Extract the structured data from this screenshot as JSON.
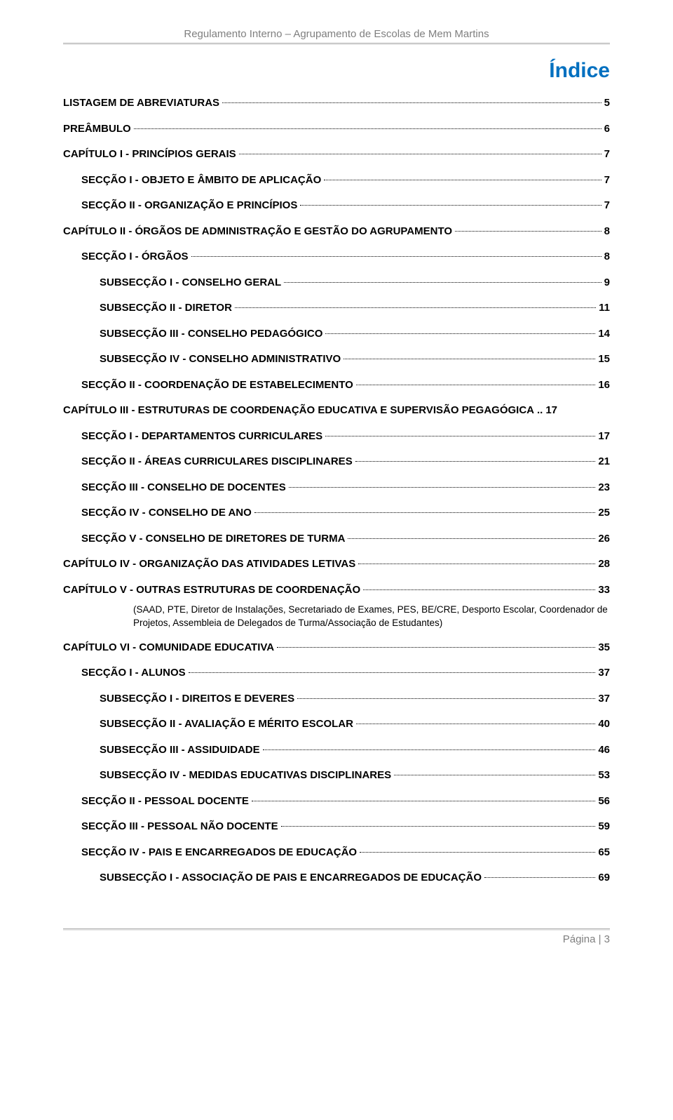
{
  "header": "Regulamento Interno – Agrupamento de Escolas de Mem Martins",
  "title": "Índice",
  "footer": "Página | 3",
  "entries": [
    {
      "label": "LISTAGEM DE ABREVIATURAS",
      "page": "5",
      "indent": 0
    },
    {
      "label": "PREÂMBULO",
      "page": "6",
      "indent": 0
    },
    {
      "label": "CAPÍTULO I - PRINCÍPIOS GERAIS",
      "page": "7",
      "indent": 0
    },
    {
      "label": "SECÇÃO I - OBJETO E ÂMBITO DE APLICAÇÃO",
      "page": "7",
      "indent": 1
    },
    {
      "label": "SECÇÃO II - ORGANIZAÇÃO E PRINCÍPIOS",
      "page": "7",
      "indent": 1
    },
    {
      "label": "CAPÍTULO II - ÓRGÃOS DE ADMINISTRAÇÃO E GESTÃO DO AGRUPAMENTO",
      "page": "8",
      "indent": 0
    },
    {
      "label": "SECÇÃO I - ÓRGÃOS",
      "page": "8",
      "indent": 1
    },
    {
      "label": "SUBSECÇÃO I - CONSELHO GERAL",
      "page": "9",
      "indent": 2
    },
    {
      "label": "SUBSECÇÃO II - DIRETOR",
      "page": "11",
      "indent": 2
    },
    {
      "label": "SUBSECÇÃO III - CONSELHO PEDAGÓGICO",
      "page": "14",
      "indent": 2
    },
    {
      "label": "SUBSECÇÃO IV - CONSELHO ADMINISTRATIVO",
      "page": "15",
      "indent": 2
    },
    {
      "label": "SECÇÃO II - COORDENAÇÃO DE ESTABELECIMENTO",
      "page": "16",
      "indent": 1
    },
    {
      "label": "CAPÍTULO III - ESTRUTURAS DE COORDENAÇÃO EDUCATIVA E SUPERVISÃO PEGAGÓGICA",
      "page": "17",
      "indent": 0,
      "separator": ".."
    },
    {
      "label": "SECÇÃO I - DEPARTAMENTOS CURRICULARES",
      "page": "17",
      "indent": 1
    },
    {
      "label": "SECÇÃO II - ÁREAS CURRICULARES DISCIPLINARES",
      "page": "21",
      "indent": 1
    },
    {
      "label": "SECÇÃO III - CONSELHO DE DOCENTES",
      "page": "23",
      "indent": 1
    },
    {
      "label": "SECÇÃO IV - CONSELHO DE ANO",
      "page": "25",
      "indent": 1
    },
    {
      "label": "SECÇÃO V - CONSELHO DE DIRETORES DE TURMA",
      "page": "26",
      "indent": 1
    },
    {
      "label": "CAPÍTULO IV - ORGANIZAÇÃO DAS ATIVIDADES LETIVAS",
      "page": "28",
      "indent": 0
    },
    {
      "label": "CAPÍTULO V - OUTRAS ESTRUTURAS DE COORDENAÇÃO",
      "page": "33",
      "indent": 0
    },
    {
      "note": "(SAAD, PTE, Diretor de Instalações, Secretariado de Exames, PES, BE/CRE, Desporto Escolar, Coordenador de Projetos, Assembleia de Delegados de Turma/Associação de Estudantes)"
    },
    {
      "label": "CAPÍTULO VI - COMUNIDADE EDUCATIVA",
      "page": "35",
      "indent": 0
    },
    {
      "label": "SECÇÃO I - ALUNOS",
      "page": "37",
      "indent": 1
    },
    {
      "label": "SUBSECÇÃO I - DIREITOS E DEVERES",
      "page": "37",
      "indent": 2
    },
    {
      "label": "SUBSECÇÃO II - AVALIAÇÃO E MÉRITO ESCOLAR",
      "page": "40",
      "indent": 2
    },
    {
      "label": "SUBSECÇÃO III - ASSIDUIDADE",
      "page": "46",
      "indent": 2
    },
    {
      "label": "SUBSECÇÃO IV - MEDIDAS EDUCATIVAS DISCIPLINARES",
      "page": "53",
      "indent": 2
    },
    {
      "label": "SECÇÃO II - PESSOAL DOCENTE",
      "page": "56",
      "indent": 1
    },
    {
      "label": "SECÇÃO III - PESSOAL NÃO DOCENTE",
      "page": "59",
      "indent": 1
    },
    {
      "label": "SECÇÃO IV - PAIS E ENCARREGADOS DE EDUCAÇÃO",
      "page": "65",
      "indent": 1
    },
    {
      "label": "SUBSECÇÃO I - ASSOCIAÇÃO DE PAIS E ENCARREGADOS DE EDUCAÇÃO",
      "page": "69",
      "indent": 2
    }
  ]
}
